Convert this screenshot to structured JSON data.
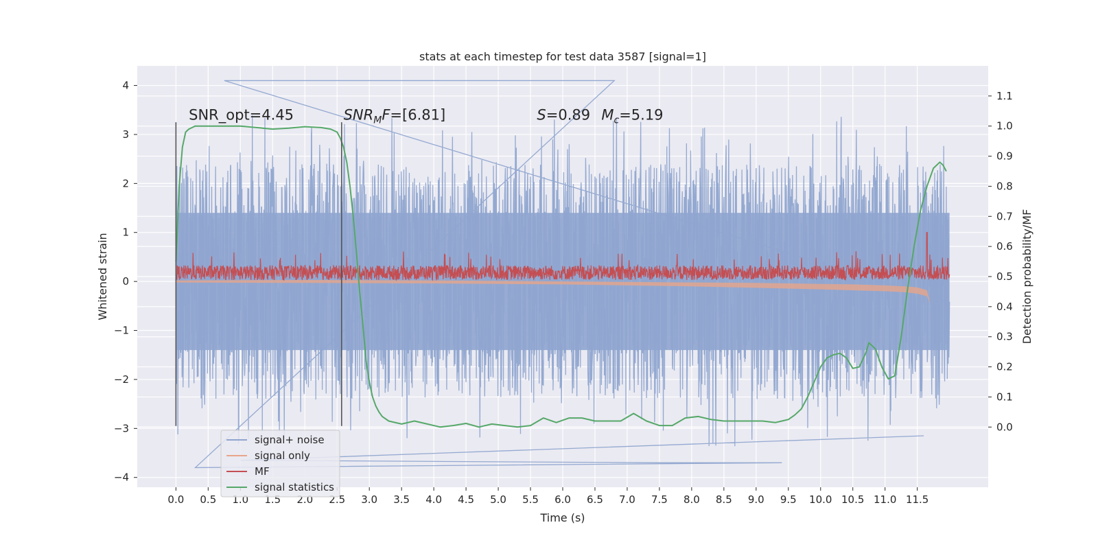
{
  "chart_data": {
    "type": "line",
    "title": "stats at each timestep for test data 3587 [signal=1]",
    "xlabel": "Time (s)",
    "ylabel_left": "Whitened strain",
    "ylabel_right": "Detection probability/MF",
    "xlim": [
      -0.6,
      12.6
    ],
    "ylim_left": [
      -4.2,
      4.4
    ],
    "ylim_right": [
      -0.2,
      1.2
    ],
    "x_ticks": [
      0.0,
      0.5,
      1.0,
      1.5,
      2.0,
      2.5,
      3.0,
      3.5,
      4.0,
      4.5,
      5.0,
      5.5,
      6.0,
      6.5,
      7.0,
      7.5,
      8.0,
      8.5,
      9.0,
      9.5,
      10.0,
      10.5,
      11.0,
      11.5
    ],
    "x_tick_labels": [
      "0.0",
      "0.5",
      "1.0",
      "1.5",
      "2.0",
      "2.5",
      "3.0",
      "3.5",
      "4.0",
      "4.5",
      "5.0",
      "5.5",
      "6.0",
      "6.5",
      "7.0",
      "7.5",
      "8.0",
      "8.5",
      "9.0",
      "9.5",
      "10.0",
      "10.5",
      "11.0",
      "11.5"
    ],
    "y_left_ticks": [
      -4,
      -3,
      -2,
      -1,
      0,
      1,
      2,
      3,
      4
    ],
    "y_left_tick_labels": [
      "−4",
      "−3",
      "−2",
      "−1",
      "0",
      "1",
      "2",
      "3",
      "4"
    ],
    "y_right_ticks": [
      0.0,
      0.1,
      0.2,
      0.3,
      0.4,
      0.5,
      0.6,
      0.7,
      0.8,
      0.9,
      1.0,
      1.1
    ],
    "y_right_tick_labels": [
      "0.0",
      "0.1",
      "0.2",
      "0.3",
      "0.4",
      "0.5",
      "0.6",
      "0.7",
      "0.8",
      "0.9",
      "1.0",
      "1.1"
    ],
    "grid": true,
    "legend_placement": "lower-left",
    "series": [
      {
        "name": "signal+ noise",
        "axis": "left",
        "color": "#8fa5cf",
        "x_range": [
          0,
          12
        ],
        "band_typical": [
          -1.4,
          1.4
        ],
        "extremes": [
          -3.8,
          4.1
        ]
      },
      {
        "name": "signal only",
        "axis": "left",
        "color": "#e7a589",
        "x": [
          0,
          2,
          4,
          6,
          8,
          9,
          10,
          10.5,
          11,
          11.3,
          11.5,
          11.65,
          11.7
        ],
        "upper": [
          0.02,
          0.03,
          0.02,
          0.0,
          -0.02,
          -0.03,
          -0.05,
          -0.06,
          -0.08,
          -0.1,
          -0.12,
          -0.18,
          -0.45
        ],
        "lower": [
          -0.02,
          -0.03,
          -0.04,
          -0.06,
          -0.1,
          -0.13,
          -0.16,
          -0.18,
          -0.2,
          -0.22,
          -0.25,
          -0.3,
          -0.45
        ]
      },
      {
        "name": "MF",
        "axis": "left",
        "color": "#c44e52",
        "x_range": [
          0,
          12
        ],
        "baseline": 0.18,
        "amplitude": 0.3,
        "peak": {
          "x": 11.65,
          "y": 1.0
        }
      },
      {
        "name": "signal statistics",
        "axis": "right",
        "color": "#55a868",
        "x": [
          0,
          0.05,
          0.1,
          0.15,
          0.2,
          0.3,
          0.5,
          0.75,
          1.0,
          1.25,
          1.5,
          1.75,
          2.0,
          2.25,
          2.4,
          2.5,
          2.55,
          2.6,
          2.65,
          2.7,
          2.75,
          2.8,
          2.85,
          2.9,
          2.95,
          3.0,
          3.05,
          3.1,
          3.15,
          3.2,
          3.3,
          3.5,
          3.7,
          3.9,
          4.1,
          4.3,
          4.5,
          4.7,
          4.9,
          5.1,
          5.3,
          5.5,
          5.7,
          5.9,
          6.1,
          6.3,
          6.5,
          6.7,
          6.9,
          7.1,
          7.3,
          7.5,
          7.7,
          7.9,
          8.1,
          8.3,
          8.5,
          8.7,
          8.9,
          9.1,
          9.3,
          9.5,
          9.6,
          9.7,
          9.8,
          9.9,
          10.0,
          10.1,
          10.2,
          10.3,
          10.4,
          10.5,
          10.6,
          10.7,
          10.75,
          10.85,
          10.95,
          11.05,
          11.15,
          11.25,
          11.35,
          11.45,
          11.55,
          11.65,
          11.75,
          11.85,
          11.9,
          11.95
        ],
        "y": [
          0.55,
          0.8,
          0.93,
          0.98,
          0.99,
          1.0,
          1.0,
          1.0,
          1.0,
          0.995,
          0.99,
          0.993,
          0.998,
          0.995,
          0.99,
          0.98,
          0.96,
          0.93,
          0.88,
          0.8,
          0.7,
          0.58,
          0.45,
          0.34,
          0.22,
          0.15,
          0.1,
          0.07,
          0.05,
          0.035,
          0.02,
          0.01,
          0.02,
          0.01,
          0.0,
          0.005,
          0.012,
          0.0,
          0.01,
          0.005,
          0.0,
          0.005,
          0.03,
          0.015,
          0.03,
          0.03,
          0.02,
          0.02,
          0.02,
          0.045,
          0.02,
          0.005,
          0.005,
          0.03,
          0.035,
          0.025,
          0.02,
          0.02,
          0.02,
          0.02,
          0.015,
          0.025,
          0.04,
          0.06,
          0.1,
          0.15,
          0.2,
          0.23,
          0.24,
          0.245,
          0.23,
          0.195,
          0.2,
          0.245,
          0.28,
          0.26,
          0.2,
          0.16,
          0.17,
          0.3,
          0.46,
          0.6,
          0.72,
          0.8,
          0.86,
          0.88,
          0.87,
          0.85
        ]
      }
    ],
    "annotations": [
      {
        "text_plain": "SNR_opt=4.45",
        "x": 0.2,
        "y_left": 3.3
      },
      {
        "text_italic": "SNR",
        "text_sub": "M",
        "text_italic2": "F",
        "text_rest": "=[6.81]",
        "x": 2.6,
        "y_left": 3.3
      },
      {
        "text_italic": "S",
        "text_rest": "=0.89",
        "x": 5.6,
        "y_left": 3.3
      },
      {
        "text_italic": "M",
        "text_sub": "c",
        "text_rest": "=5.19",
        "x": 6.6,
        "y_left": 3.3
      }
    ],
    "vertical_lines": [
      {
        "x": 0.0,
        "y_left_range": [
          -2.95,
          3.25
        ]
      },
      {
        "x": 2.57,
        "y_left_range": [
          -2.95,
          3.25
        ]
      }
    ]
  }
}
